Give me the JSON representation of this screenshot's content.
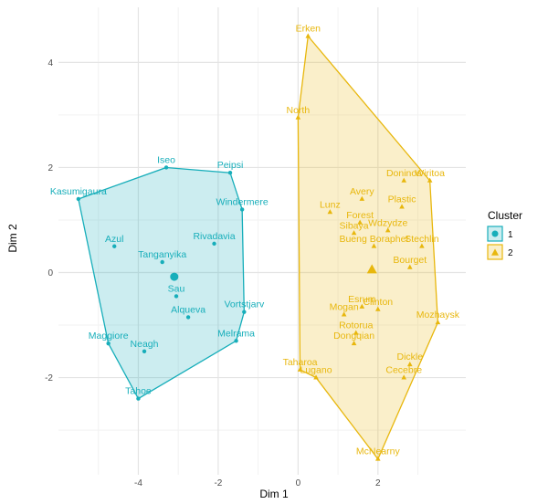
{
  "chart_data": {
    "type": "scatter",
    "xlabel": "Dim 1",
    "ylabel": "Dim 2",
    "xlim": [
      -6,
      4.2
    ],
    "ylim": [
      -3.85,
      5.05
    ],
    "x_ticks": [
      -4,
      -2,
      0,
      2
    ],
    "y_ticks": [
      -2,
      0,
      2,
      4
    ],
    "grid": true,
    "legend_position": "right",
    "legend_title": "Cluster",
    "colors": {
      "cluster1": "#17aeba",
      "cluster2": "#e8b70d"
    },
    "series": [
      {
        "name": "1",
        "marker": "circle",
        "points": [
          {
            "label": "Iseo",
            "x": -3.3,
            "y": 2.0
          },
          {
            "label": "Peipsi",
            "x": -1.7,
            "y": 1.9
          },
          {
            "label": "Kasumigaura",
            "x": -5.5,
            "y": 1.4
          },
          {
            "label": "Windermere",
            "x": -1.4,
            "y": 1.2
          },
          {
            "label": "Azul",
            "x": -4.6,
            "y": 0.5
          },
          {
            "label": "Rivadavia",
            "x": -2.1,
            "y": 0.55
          },
          {
            "label": "Tanganyika",
            "x": -3.4,
            "y": 0.2
          },
          {
            "label": "Sau",
            "x": -3.05,
            "y": -0.45
          },
          {
            "label": "Vortstjarv",
            "x": -1.35,
            "y": -0.75
          },
          {
            "label": "Alqueva",
            "x": -2.75,
            "y": -0.85
          },
          {
            "label": "Maggiore",
            "x": -4.75,
            "y": -1.35
          },
          {
            "label": "Neagh",
            "x": -3.85,
            "y": -1.5
          },
          {
            "label": "Melrama",
            "x": -1.55,
            "y": -1.3
          },
          {
            "label": "Tahoe",
            "x": -4.0,
            "y": -2.4
          }
        ],
        "hull": [
          "Iseo",
          "Peipsi",
          "Windermere",
          "Vortstjarv",
          "Melrama",
          "Tahoe",
          "Maggiore",
          "Kasumigaura"
        ],
        "centroid": {
          "x": -3.1,
          "y": -0.08
        }
      },
      {
        "name": "2",
        "marker": "triangle",
        "points": [
          {
            "label": "Erken",
            "x": 0.25,
            "y": 4.5
          },
          {
            "label": "North",
            "x": 0.0,
            "y": 2.95
          },
          {
            "label": "Doninos",
            "x": 2.65,
            "y": 1.75
          },
          {
            "label": "Wiritoa",
            "x": 3.3,
            "y": 1.75
          },
          {
            "label": "Avery",
            "x": 1.6,
            "y": 1.4
          },
          {
            "label": "Lunz",
            "x": 0.8,
            "y": 1.15
          },
          {
            "label": "Plastic",
            "x": 2.6,
            "y": 1.25
          },
          {
            "label": "Forest",
            "x": 1.55,
            "y": 0.95
          },
          {
            "label": "Wdzydze",
            "x": 2.25,
            "y": 0.8
          },
          {
            "label": "Sibaya",
            "x": 1.4,
            "y": 0.75
          },
          {
            "label": "Stechlin",
            "x": 3.1,
            "y": 0.5
          },
          {
            "label": "Bueng Boraphet",
            "x": 1.9,
            "y": 0.5
          },
          {
            "label": "Bourget",
            "x": 2.8,
            "y": 0.1
          },
          {
            "label": "Esrum",
            "x": 1.6,
            "y": -0.65
          },
          {
            "label": "Clinton",
            "x": 2.0,
            "y": -0.7
          },
          {
            "label": "Mogan",
            "x": 1.15,
            "y": -0.8
          },
          {
            "label": "Mozhaysk",
            "x": 3.5,
            "y": -0.95
          },
          {
            "label": "Rotorua",
            "x": 1.45,
            "y": -1.15
          },
          {
            "label": "Dongqian",
            "x": 1.4,
            "y": -1.35
          },
          {
            "label": "Dickle",
            "x": 2.8,
            "y": -1.75
          },
          {
            "label": "Taharoa",
            "x": 0.05,
            "y": -1.85
          },
          {
            "label": "Lugano",
            "x": 0.45,
            "y": -2.0
          },
          {
            "label": "Cecebre",
            "x": 2.65,
            "y": -2.0
          },
          {
            "label": "McNearny",
            "x": 2.0,
            "y": -3.55
          }
        ],
        "hull": [
          "Erken",
          "Wiritoa",
          "Mozhaysk",
          "McNearny",
          "Lugano",
          "Taharoa",
          "North"
        ],
        "centroid": {
          "x": 1.85,
          "y": 0.05
        }
      }
    ]
  }
}
